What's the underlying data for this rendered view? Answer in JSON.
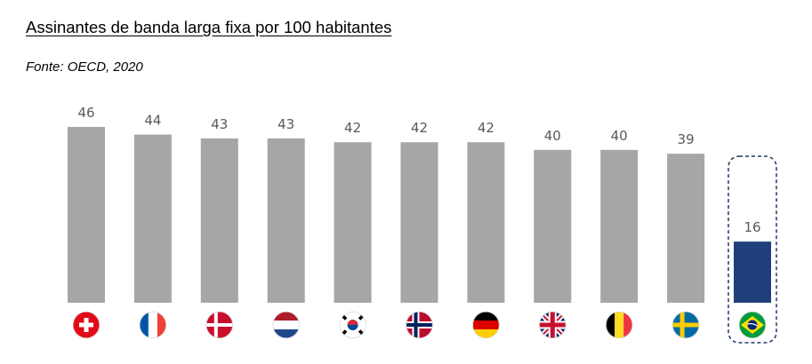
{
  "title": "Assinantes de banda larga fixa por 100 habitantes",
  "source": "Fonte: OECD, 2020",
  "colors": {
    "bar": "#a6a6a6",
    "highlight": "#1f3f7a",
    "label": "#595959",
    "highlight_border": "#1f3864"
  },
  "chart_data": {
    "type": "bar",
    "title": "Assinantes de banda larga fixa por 100 habitantes",
    "categories": [
      "switzerland-flag-icon",
      "france-flag-icon",
      "denmark-flag-icon",
      "netherlands-flag-icon",
      "south-korea-flag-icon",
      "norway-flag-icon",
      "germany-flag-icon",
      "uk-flag-icon",
      "belgium-flag-icon",
      "sweden-flag-icon",
      "brazil-flag-icon"
    ],
    "values": [
      46,
      44,
      43,
      43,
      42,
      42,
      42,
      40,
      40,
      39,
      16
    ],
    "highlight_index": 10,
    "ylim": [
      0,
      46
    ],
    "grid": false,
    "legend": "none"
  }
}
